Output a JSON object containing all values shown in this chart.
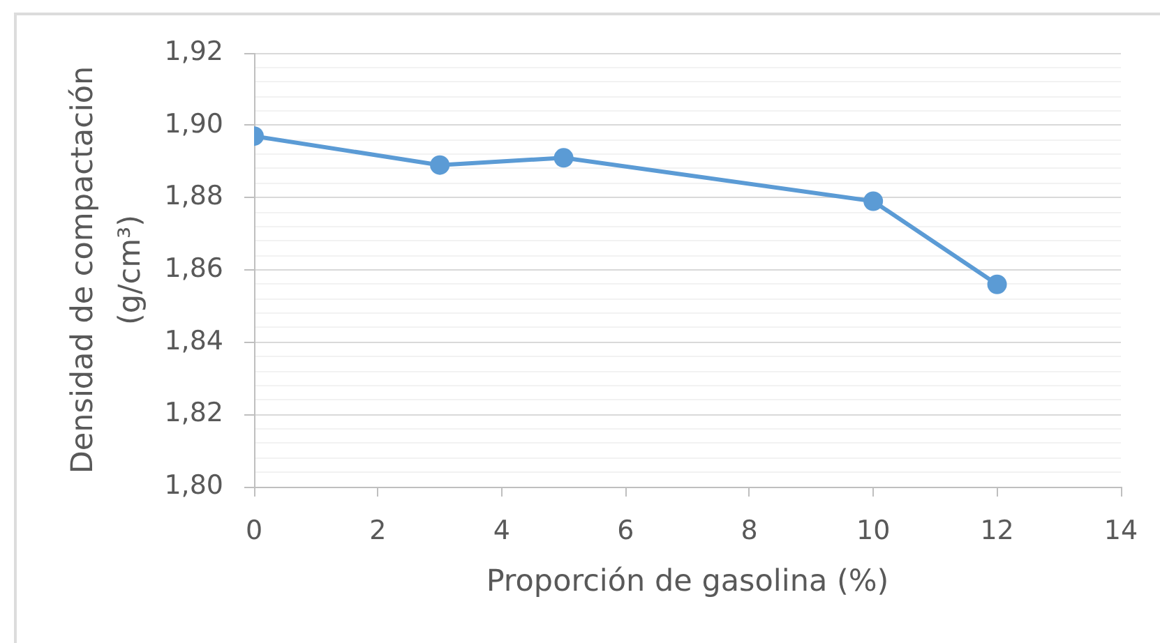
{
  "chart_data": {
    "type": "line",
    "xlabel": "Proporción de gasolina (%)",
    "ylabel": "Densidad de compactación (g/cm³)",
    "x": [
      0,
      3,
      5,
      10,
      12
    ],
    "values": [
      1.897,
      1.889,
      1.891,
      1.879,
      1.856
    ],
    "color": "#5b9bd5",
    "xlim": [
      0,
      14
    ],
    "xticks": [
      0,
      2,
      4,
      6,
      8,
      10,
      12,
      14
    ],
    "ylim": [
      1.8,
      1.92
    ],
    "yticks": [
      {
        "value": 1.8,
        "label": "1,80"
      },
      {
        "value": 1.804,
        "label": null
      },
      {
        "value": 1.808,
        "label": null
      },
      {
        "value": 1.812,
        "label": null
      },
      {
        "value": 1.816,
        "label": null
      },
      {
        "value": 1.82,
        "label": "1,82"
      },
      {
        "value": 1.824,
        "label": null
      },
      {
        "value": 1.828,
        "label": null
      },
      {
        "value": 1.832,
        "label": null
      },
      {
        "value": 1.836,
        "label": null
      },
      {
        "value": 1.84,
        "label": "1,84"
      },
      {
        "value": 1.844,
        "label": null
      },
      {
        "value": 1.848,
        "label": null
      },
      {
        "value": 1.852,
        "label": null
      },
      {
        "value": 1.856,
        "label": null
      },
      {
        "value": 1.86,
        "label": "1,86"
      },
      {
        "value": 1.864,
        "label": null
      },
      {
        "value": 1.868,
        "label": null
      },
      {
        "value": 1.872,
        "label": null
      },
      {
        "value": 1.876,
        "label": null
      },
      {
        "value": 1.88,
        "label": "1,88"
      },
      {
        "value": 1.884,
        "label": null
      },
      {
        "value": 1.888,
        "label": null
      },
      {
        "value": 1.892,
        "label": null
      },
      {
        "value": 1.896,
        "label": null
      },
      {
        "value": 1.9,
        "label": "1,90"
      },
      {
        "value": 1.904,
        "label": null
      },
      {
        "value": 1.908,
        "label": null
      },
      {
        "value": 1.912,
        "label": null
      },
      {
        "value": 1.916,
        "label": null
      },
      {
        "value": 1.92,
        "label": "1,92"
      }
    ],
    "grid": "y",
    "marker": "circle",
    "line_style": "solid"
  }
}
